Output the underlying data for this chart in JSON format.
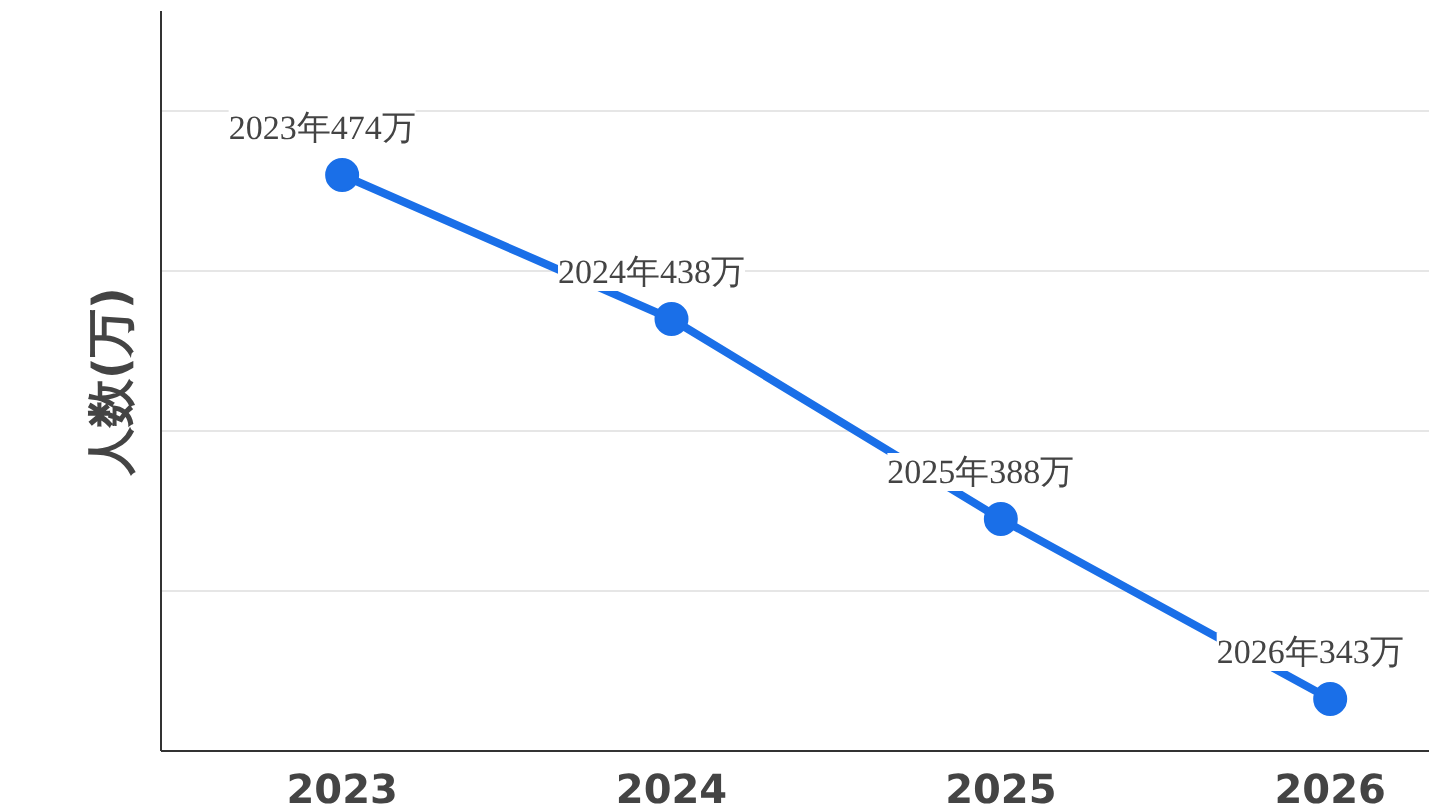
{
  "chart_data": {
    "type": "line",
    "ylabel": "人数(万)",
    "categories": [
      "2023",
      "2024",
      "2025",
      "2026"
    ],
    "series": [
      {
        "color": "#1a6fe8",
        "values": [
          474,
          438,
          388,
          343
        ],
        "value_labels": [
          "2023年474万",
          "2024年438万",
          "2025年388万",
          "2026年343万"
        ]
      }
    ],
    "ylim": [
      330,
      515
    ],
    "yticks": [
      {
        "value": 370,
        "label": null
      },
      {
        "value": 410,
        "label": null
      },
      {
        "value": 450,
        "label": null
      },
      {
        "value": 490,
        "label": null
      }
    ],
    "grid": "y",
    "marker": "circle",
    "line_style": "solid",
    "tick_labels": "x"
  }
}
